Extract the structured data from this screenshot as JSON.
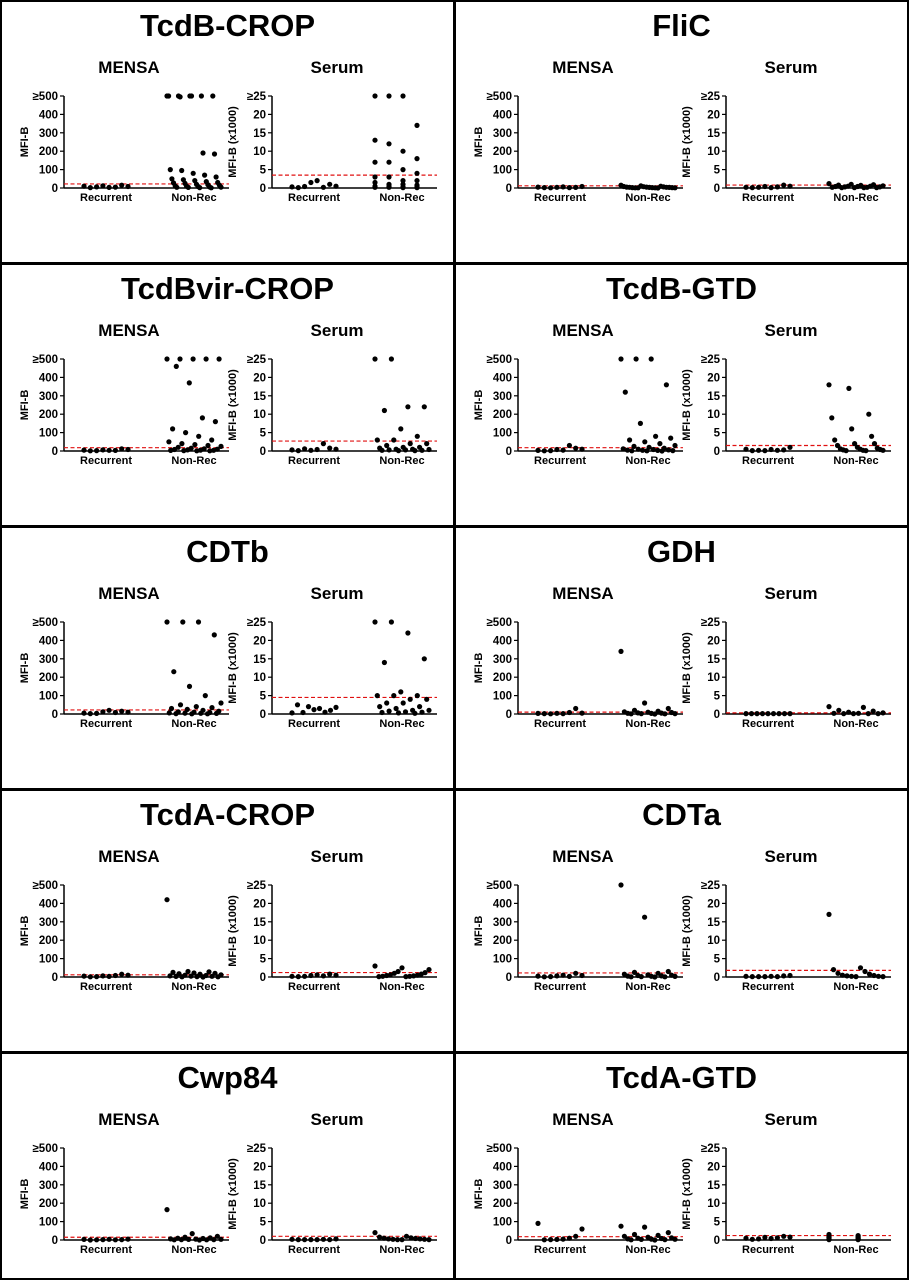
{
  "colors": {
    "point": "#000000",
    "threshold": "#e01010",
    "axis": "#000000"
  },
  "panels": [
    {
      "title": "TcdB-CROP",
      "mensa": {
        "title": "MENSA",
        "ylabel": "MFI-B",
        "threshold": 22
      },
      "serum": {
        "title": "Serum",
        "ylabel": "MFI-B (x1000)",
        "threshold": 3.5
      }
    },
    {
      "title": "FliC",
      "mensa": {
        "title": "MENSA",
        "ylabel": "MFI-B",
        "threshold": 12
      },
      "serum": {
        "title": "Serum",
        "ylabel": "MFI-B (x1000)",
        "threshold": 0.8
      }
    },
    {
      "title": "TcdBvir-CROP",
      "mensa": {
        "title": "MENSA",
        "ylabel": "MFI-B",
        "threshold": 18
      },
      "serum": {
        "title": "Serum",
        "ylabel": "MFI-B (x1000)",
        "threshold": 2.7
      }
    },
    {
      "title": "TcdB-GTD",
      "mensa": {
        "title": "MENSA",
        "ylabel": "MFI-B",
        "threshold": 18
      },
      "serum": {
        "title": "Serum",
        "ylabel": "MFI-B (x1000)",
        "threshold": 1.5
      }
    },
    {
      "title": "CDTb",
      "mensa": {
        "title": "MENSA",
        "ylabel": "MFI-B",
        "threshold": 22
      },
      "serum": {
        "title": "Serum",
        "ylabel": "MFI-B (x1000)",
        "threshold": 4.5
      }
    },
    {
      "title": "GDH",
      "mensa": {
        "title": "MENSA",
        "ylabel": "MFI-B",
        "threshold": 10
      },
      "serum": {
        "title": "Serum",
        "ylabel": "MFI-B (x1000)",
        "threshold": 0.3
      }
    },
    {
      "title": "TcdA-CROP",
      "mensa": {
        "title": "MENSA",
        "ylabel": "MFI-B",
        "threshold": 12
      },
      "serum": {
        "title": "Serum",
        "ylabel": "MFI-B (x1000)",
        "threshold": 1.2
      }
    },
    {
      "title": "CDTa",
      "mensa": {
        "title": "MENSA",
        "ylabel": "MFI-B",
        "threshold": 22
      },
      "serum": {
        "title": "Serum",
        "ylabel": "MFI-B (x1000)",
        "threshold": 1.8
      }
    },
    {
      "title": "Cwp84",
      "mensa": {
        "title": "MENSA",
        "ylabel": "MFI-B",
        "threshold": 15
      },
      "serum": {
        "title": "Serum",
        "ylabel": "MFI-B (x1000)",
        "threshold": 1.0
      }
    },
    {
      "title": "TcdA-GTD",
      "mensa": {
        "title": "MENSA",
        "ylabel": "MFI-B",
        "threshold": 18
      },
      "serum": {
        "title": "Serum",
        "ylabel": "MFI-B (x1000)",
        "threshold": 1.2
      }
    }
  ],
  "chart_data": [
    {
      "type": "scatter",
      "antigen": "TcdB-CROP",
      "sample": "MENSA",
      "categories": [
        "Recurrent",
        "Non-Rec"
      ],
      "ylabel": "MFI-B",
      "ylim": [
        0,
        500
      ],
      "y_ticks": [
        "0",
        "100",
        "200",
        "300",
        "400",
        "≥500"
      ],
      "threshold": 22,
      "groups": [
        [
          10,
          8,
          15,
          5,
          3,
          12,
          6,
          2
        ],
        [
          500,
          500,
          500,
          500,
          500,
          500,
          495,
          500,
          190,
          185,
          100,
          95,
          80,
          70,
          60,
          50,
          45,
          40,
          35,
          30,
          28,
          25,
          20,
          18,
          15,
          12,
          10,
          8,
          6,
          5,
          4,
          3,
          2,
          1
        ]
      ]
    },
    {
      "type": "scatter",
      "antigen": "TcdB-CROP",
      "sample": "Serum",
      "categories": [
        "Recurrent",
        "Non-Rec"
      ],
      "ylabel": "MFI-B (x1000)",
      "ylim": [
        0,
        25
      ],
      "y_ticks": [
        "0",
        "5",
        "10",
        "15",
        "20",
        "≥25"
      ],
      "threshold": 3.5,
      "groups": [
        [
          0.3,
          0.5,
          1.0,
          0.2,
          2.0,
          1.5,
          0.4,
          0.1
        ],
        [
          25,
          25,
          25,
          17,
          13,
          12,
          10,
          8,
          7,
          7,
          5,
          4,
          3,
          3,
          2,
          2,
          1.5,
          1,
          1,
          0.8,
          0.5,
          0.5,
          0.3,
          0.3,
          0.2,
          0.2,
          0.1,
          0.1
        ]
      ]
    },
    {
      "type": "scatter",
      "antigen": "FliC",
      "sample": "MENSA",
      "categories": [
        "Recurrent",
        "Non-Rec"
      ],
      "ylabel": "MFI-B",
      "ylim": [
        0,
        500
      ],
      "y_ticks": [
        "0",
        "100",
        "200",
        "300",
        "400",
        "≥500"
      ],
      "threshold": 12,
      "groups": [
        [
          5,
          8,
          3,
          2,
          6,
          4,
          1,
          2
        ],
        [
          15,
          12,
          10,
          8,
          7,
          6,
          5,
          5,
          4,
          4,
          3,
          3,
          2,
          2,
          2,
          1,
          1,
          1,
          1,
          0
        ]
      ]
    },
    {
      "type": "scatter",
      "antigen": "FliC",
      "sample": "Serum",
      "categories": [
        "Recurrent",
        "Non-Rec"
      ],
      "ylabel": "MFI-B (x1000)",
      "ylim": [
        0,
        25
      ],
      "y_ticks": [
        "0",
        "5",
        "10",
        "15",
        "20",
        "≥25"
      ],
      "threshold": 0.8,
      "groups": [
        [
          0.2,
          0.5,
          0.8,
          0.3,
          0.1,
          0.4,
          0.2,
          0.1
        ],
        [
          1.2,
          1.0,
          0.9,
          0.8,
          0.7,
          0.6,
          0.5,
          0.5,
          0.4,
          0.4,
          0.3,
          0.3,
          0.2,
          0.2,
          0.1,
          0.1,
          0.1,
          0.1
        ]
      ]
    },
    {
      "type": "scatter",
      "antigen": "TcdBvir-CROP",
      "sample": "MENSA",
      "categories": [
        "Recurrent",
        "Non-Rec"
      ],
      "ylabel": "MFI-B",
      "ylim": [
        0,
        500
      ],
      "y_ticks": [
        "0",
        "100",
        "200",
        "300",
        "400",
        "≥500"
      ],
      "threshold": 18,
      "groups": [
        [
          5,
          8,
          12,
          3,
          4,
          6,
          2,
          1
        ],
        [
          500,
          500,
          500,
          500,
          500,
          460,
          370,
          180,
          160,
          120,
          100,
          80,
          60,
          50,
          40,
          35,
          30,
          25,
          20,
          15,
          12,
          10,
          8,
          6,
          5,
          4,
          3,
          2,
          1,
          1
        ]
      ]
    },
    {
      "type": "scatter",
      "antigen": "TcdBvir-CROP",
      "sample": "Serum",
      "categories": [
        "Recurrent",
        "Non-Rec"
      ],
      "ylabel": "MFI-B (x1000)",
      "ylim": [
        0,
        25
      ],
      "y_ticks": [
        "0",
        "5",
        "10",
        "15",
        "20",
        "≥25"
      ],
      "threshold": 2.7,
      "groups": [
        [
          0.3,
          0.5,
          0.8,
          2.0,
          0.4,
          0.2,
          0.6,
          0.1
        ],
        [
          25,
          25,
          12,
          12,
          11,
          6,
          4,
          3,
          3,
          2,
          2,
          1.5,
          1,
          1,
          0.8,
          0.5,
          0.5,
          0.4,
          0.3,
          0.3,
          0.2,
          0.2,
          0.1,
          0.1
        ]
      ]
    },
    {
      "type": "scatter",
      "antigen": "TcdB-GTD",
      "sample": "MENSA",
      "categories": [
        "Recurrent",
        "Non-Rec"
      ],
      "ylabel": "MFI-B",
      "ylim": [
        0,
        500
      ],
      "y_ticks": [
        "0",
        "100",
        "200",
        "300",
        "400",
        "≥500"
      ],
      "threshold": 18,
      "groups": [
        [
          3,
          10,
          15,
          30,
          5,
          8,
          2,
          1
        ],
        [
          500,
          500,
          500,
          360,
          320,
          150,
          80,
          70,
          60,
          50,
          40,
          30,
          25,
          20,
          15,
          12,
          10,
          8,
          6,
          5,
          4,
          3,
          2,
          1,
          1,
          0
        ]
      ]
    },
    {
      "type": "scatter",
      "antigen": "TcdB-GTD",
      "sample": "Serum",
      "categories": [
        "Recurrent",
        "Non-Rec"
      ],
      "ylabel": "MFI-B (x1000)",
      "ylim": [
        0,
        25
      ],
      "y_ticks": [
        "0",
        "5",
        "10",
        "15",
        "20",
        "≥25"
      ],
      "threshold": 1.5,
      "groups": [
        [
          0.5,
          1.0,
          0.3,
          0.2,
          0.4,
          0.1,
          0.2,
          0.1
        ],
        [
          18,
          17,
          10,
          9,
          6,
          4,
          3,
          2,
          2,
          1.5,
          1,
          0.8,
          0.6,
          0.5,
          0.4,
          0.3,
          0.2,
          0.2,
          0.1,
          0.1
        ]
      ]
    },
    {
      "type": "scatter",
      "antigen": "CDTb",
      "sample": "MENSA",
      "categories": [
        "Recurrent",
        "Non-Rec"
      ],
      "ylabel": "MFI-B",
      "ylim": [
        0,
        500
      ],
      "y_ticks": [
        "0",
        "100",
        "200",
        "300",
        "400",
        "≥500"
      ],
      "threshold": 22,
      "groups": [
        [
          5,
          10,
          15,
          8,
          20,
          12,
          3,
          2
        ],
        [
          500,
          500,
          500,
          430,
          230,
          150,
          100,
          60,
          50,
          40,
          35,
          30,
          25,
          20,
          15,
          12,
          10,
          8,
          6,
          5,
          4,
          3,
          2,
          1,
          1
        ]
      ]
    },
    {
      "type": "scatter",
      "antigen": "CDTb",
      "sample": "Serum",
      "categories": [
        "Recurrent",
        "Non-Rec"
      ],
      "ylabel": "MFI-B (x1000)",
      "ylim": [
        0,
        25
      ],
      "y_ticks": [
        "0",
        "5",
        "10",
        "15",
        "20",
        "≥25"
      ],
      "threshold": 4.5,
      "groups": [
        [
          0.3,
          1.0,
          1.5,
          2.0,
          2.5,
          1.8,
          0.5,
          1.2,
          0.4
        ],
        [
          25,
          25,
          22,
          15,
          14,
          6,
          5,
          5,
          5,
          4,
          4,
          3,
          3,
          2,
          2,
          1.5,
          1,
          1,
          0.8,
          0.6,
          0.5,
          0.4,
          0.3,
          0.2
        ]
      ]
    },
    {
      "type": "scatter",
      "antigen": "GDH",
      "sample": "MENSA",
      "categories": [
        "Recurrent",
        "Non-Rec"
      ],
      "ylabel": "MFI-B",
      "ylim": [
        0,
        500
      ],
      "y_ticks": [
        "0",
        "100",
        "200",
        "300",
        "400",
        "≥500"
      ],
      "threshold": 10,
      "groups": [
        [
          3,
          5,
          30,
          8,
          2,
          4,
          1,
          2
        ],
        [
          340,
          60,
          30,
          20,
          15,
          12,
          10,
          8,
          6,
          5,
          4,
          3,
          2,
          2,
          1,
          1,
          0
        ]
      ]
    },
    {
      "type": "scatter",
      "antigen": "GDH",
      "sample": "Serum",
      "categories": [
        "Recurrent",
        "Non-Rec"
      ],
      "ylabel": "MFI-B (x1000)",
      "ylim": [
        0,
        25
      ],
      "y_ticks": [
        "0",
        "5",
        "10",
        "15",
        "20",
        "≥25"
      ],
      "threshold": 0.3,
      "groups": [
        [
          0.1,
          0.1,
          0.1,
          0.1,
          0.1,
          0.1,
          0.1,
          0.1,
          0.1
        ],
        [
          2.0,
          1.8,
          1.0,
          0.8,
          0.5,
          0.3,
          0.2,
          0.2,
          0.1,
          0.1,
          0.1,
          0.1
        ]
      ]
    },
    {
      "type": "scatter",
      "antigen": "TcdA-CROP",
      "sample": "MENSA",
      "categories": [
        "Recurrent",
        "Non-Rec"
      ],
      "ylabel": "MFI-B",
      "ylim": [
        0,
        500
      ],
      "y_ticks": [
        "0",
        "100",
        "200",
        "300",
        "400",
        "≥500"
      ],
      "threshold": 12,
      "groups": [
        [
          5,
          10,
          15,
          8,
          3,
          6,
          2,
          1
        ],
        [
          420,
          30,
          28,
          25,
          22,
          20,
          18,
          15,
          12,
          10,
          8,
          6,
          5,
          4,
          3,
          2,
          1,
          1,
          0
        ]
      ]
    },
    {
      "type": "scatter",
      "antigen": "TcdA-CROP",
      "sample": "Serum",
      "categories": [
        "Recurrent",
        "Non-Rec"
      ],
      "ylabel": "MFI-B (x1000)",
      "ylim": [
        0,
        25
      ],
      "y_ticks": [
        "0",
        "5",
        "10",
        "15",
        "20",
        "≥25"
      ],
      "threshold": 1.2,
      "groups": [
        [
          0.2,
          0.5,
          0.8,
          0.3,
          0.6,
          0.4,
          0.2,
          0.1
        ],
        [
          3.0,
          2.5,
          2.0,
          1.5,
          1.2,
          1.0,
          0.8,
          0.6,
          0.5,
          0.4,
          0.3,
          0.2,
          0.2,
          0.1,
          0.1
        ]
      ]
    },
    {
      "type": "scatter",
      "antigen": "CDTa",
      "sample": "MENSA",
      "categories": [
        "Recurrent",
        "Non-Rec"
      ],
      "ylabel": "MFI-B",
      "ylim": [
        0,
        500
      ],
      "y_ticks": [
        "0",
        "100",
        "200",
        "300",
        "400",
        "≥500"
      ],
      "threshold": 22,
      "groups": [
        [
          5,
          8,
          20,
          3,
          10,
          6,
          2,
          1
        ],
        [
          500,
          325,
          30,
          25,
          20,
          15,
          12,
          10,
          8,
          6,
          5,
          4,
          3,
          2,
          1,
          1,
          0
        ]
      ]
    },
    {
      "type": "scatter",
      "antigen": "CDTa",
      "sample": "Serum",
      "categories": [
        "Recurrent",
        "Non-Rec"
      ],
      "ylabel": "MFI-B (x1000)",
      "ylim": [
        0,
        25
      ],
      "y_ticks": [
        "0",
        "5",
        "10",
        "15",
        "20",
        "≥25"
      ],
      "threshold": 1.8,
      "groups": [
        [
          0.2,
          0.4,
          0.3,
          0.1,
          0.2,
          0.1,
          0.1,
          0.1
        ],
        [
          17,
          2.5,
          2.0,
          1.5,
          1.0,
          0.8,
          0.5,
          0.4,
          0.3,
          0.2,
          0.2,
          0.1,
          0.1
        ]
      ]
    },
    {
      "type": "scatter",
      "antigen": "Cwp84",
      "sample": "MENSA",
      "categories": [
        "Recurrent",
        "Non-Rec"
      ],
      "ylabel": "MFI-B",
      "ylim": [
        0,
        500
      ],
      "y_ticks": [
        "0",
        "100",
        "200",
        "300",
        "400",
        "≥500"
      ],
      "threshold": 15,
      "groups": [
        [
          3,
          5,
          2,
          1,
          4,
          2,
          1,
          0
        ],
        [
          165,
          35,
          20,
          15,
          12,
          10,
          8,
          6,
          5,
          4,
          3,
          2,
          2,
          1,
          1,
          0
        ]
      ]
    },
    {
      "type": "scatter",
      "antigen": "Cwp84",
      "sample": "Serum",
      "categories": [
        "Recurrent",
        "Non-Rec"
      ],
      "ylabel": "MFI-B (x1000)",
      "ylim": [
        0,
        25
      ],
      "y_ticks": [
        "0",
        "5",
        "10",
        "15",
        "20",
        "≥25"
      ],
      "threshold": 1.0,
      "groups": [
        [
          0.2,
          0.3,
          0.1,
          0.2,
          0.1,
          0.1,
          0.1,
          0.1
        ],
        [
          2.0,
          1.0,
          0.8,
          0.6,
          0.5,
          0.4,
          0.3,
          0.3,
          0.2,
          0.2,
          0.1,
          0.1,
          0.1
        ]
      ]
    },
    {
      "type": "scatter",
      "antigen": "TcdA-GTD",
      "sample": "MENSA",
      "categories": [
        "Recurrent",
        "Non-Rec"
      ],
      "ylabel": "MFI-B",
      "ylim": [
        0,
        500
      ],
      "y_ticks": [
        "0",
        "100",
        "200",
        "300",
        "400",
        "≥500"
      ],
      "threshold": 18,
      "groups": [
        [
          90,
          60,
          20,
          10,
          5,
          3,
          2,
          1
        ],
        [
          75,
          70,
          40,
          30,
          25,
          20,
          15,
          12,
          10,
          8,
          6,
          5,
          4,
          3,
          2,
          1,
          0
        ]
      ]
    },
    {
      "type": "scatter",
      "antigen": "TcdA-GTD",
      "sample": "Serum",
      "categories": [
        "Recurrent",
        "Non-Rec"
      ],
      "ylabel": "MFI-B (x1000)",
      "ylim": [
        0,
        25
      ],
      "y_ticks": [
        "0",
        "5",
        "10",
        "15",
        "20",
        "≥25"
      ],
      "threshold": 1.2,
      "groups": [
        [
          0.5,
          0.8,
          1.0,
          0.6,
          0.4,
          0.7,
          0.3,
          0.2
        ],
        [
          1.5,
          1.2,
          1.0,
          0.9,
          0.8,
          0.7,
          0.6,
          0.5,
          0.4,
          0.3,
          0.2,
          0.2,
          0.1,
          0.1
        ]
      ]
    }
  ]
}
